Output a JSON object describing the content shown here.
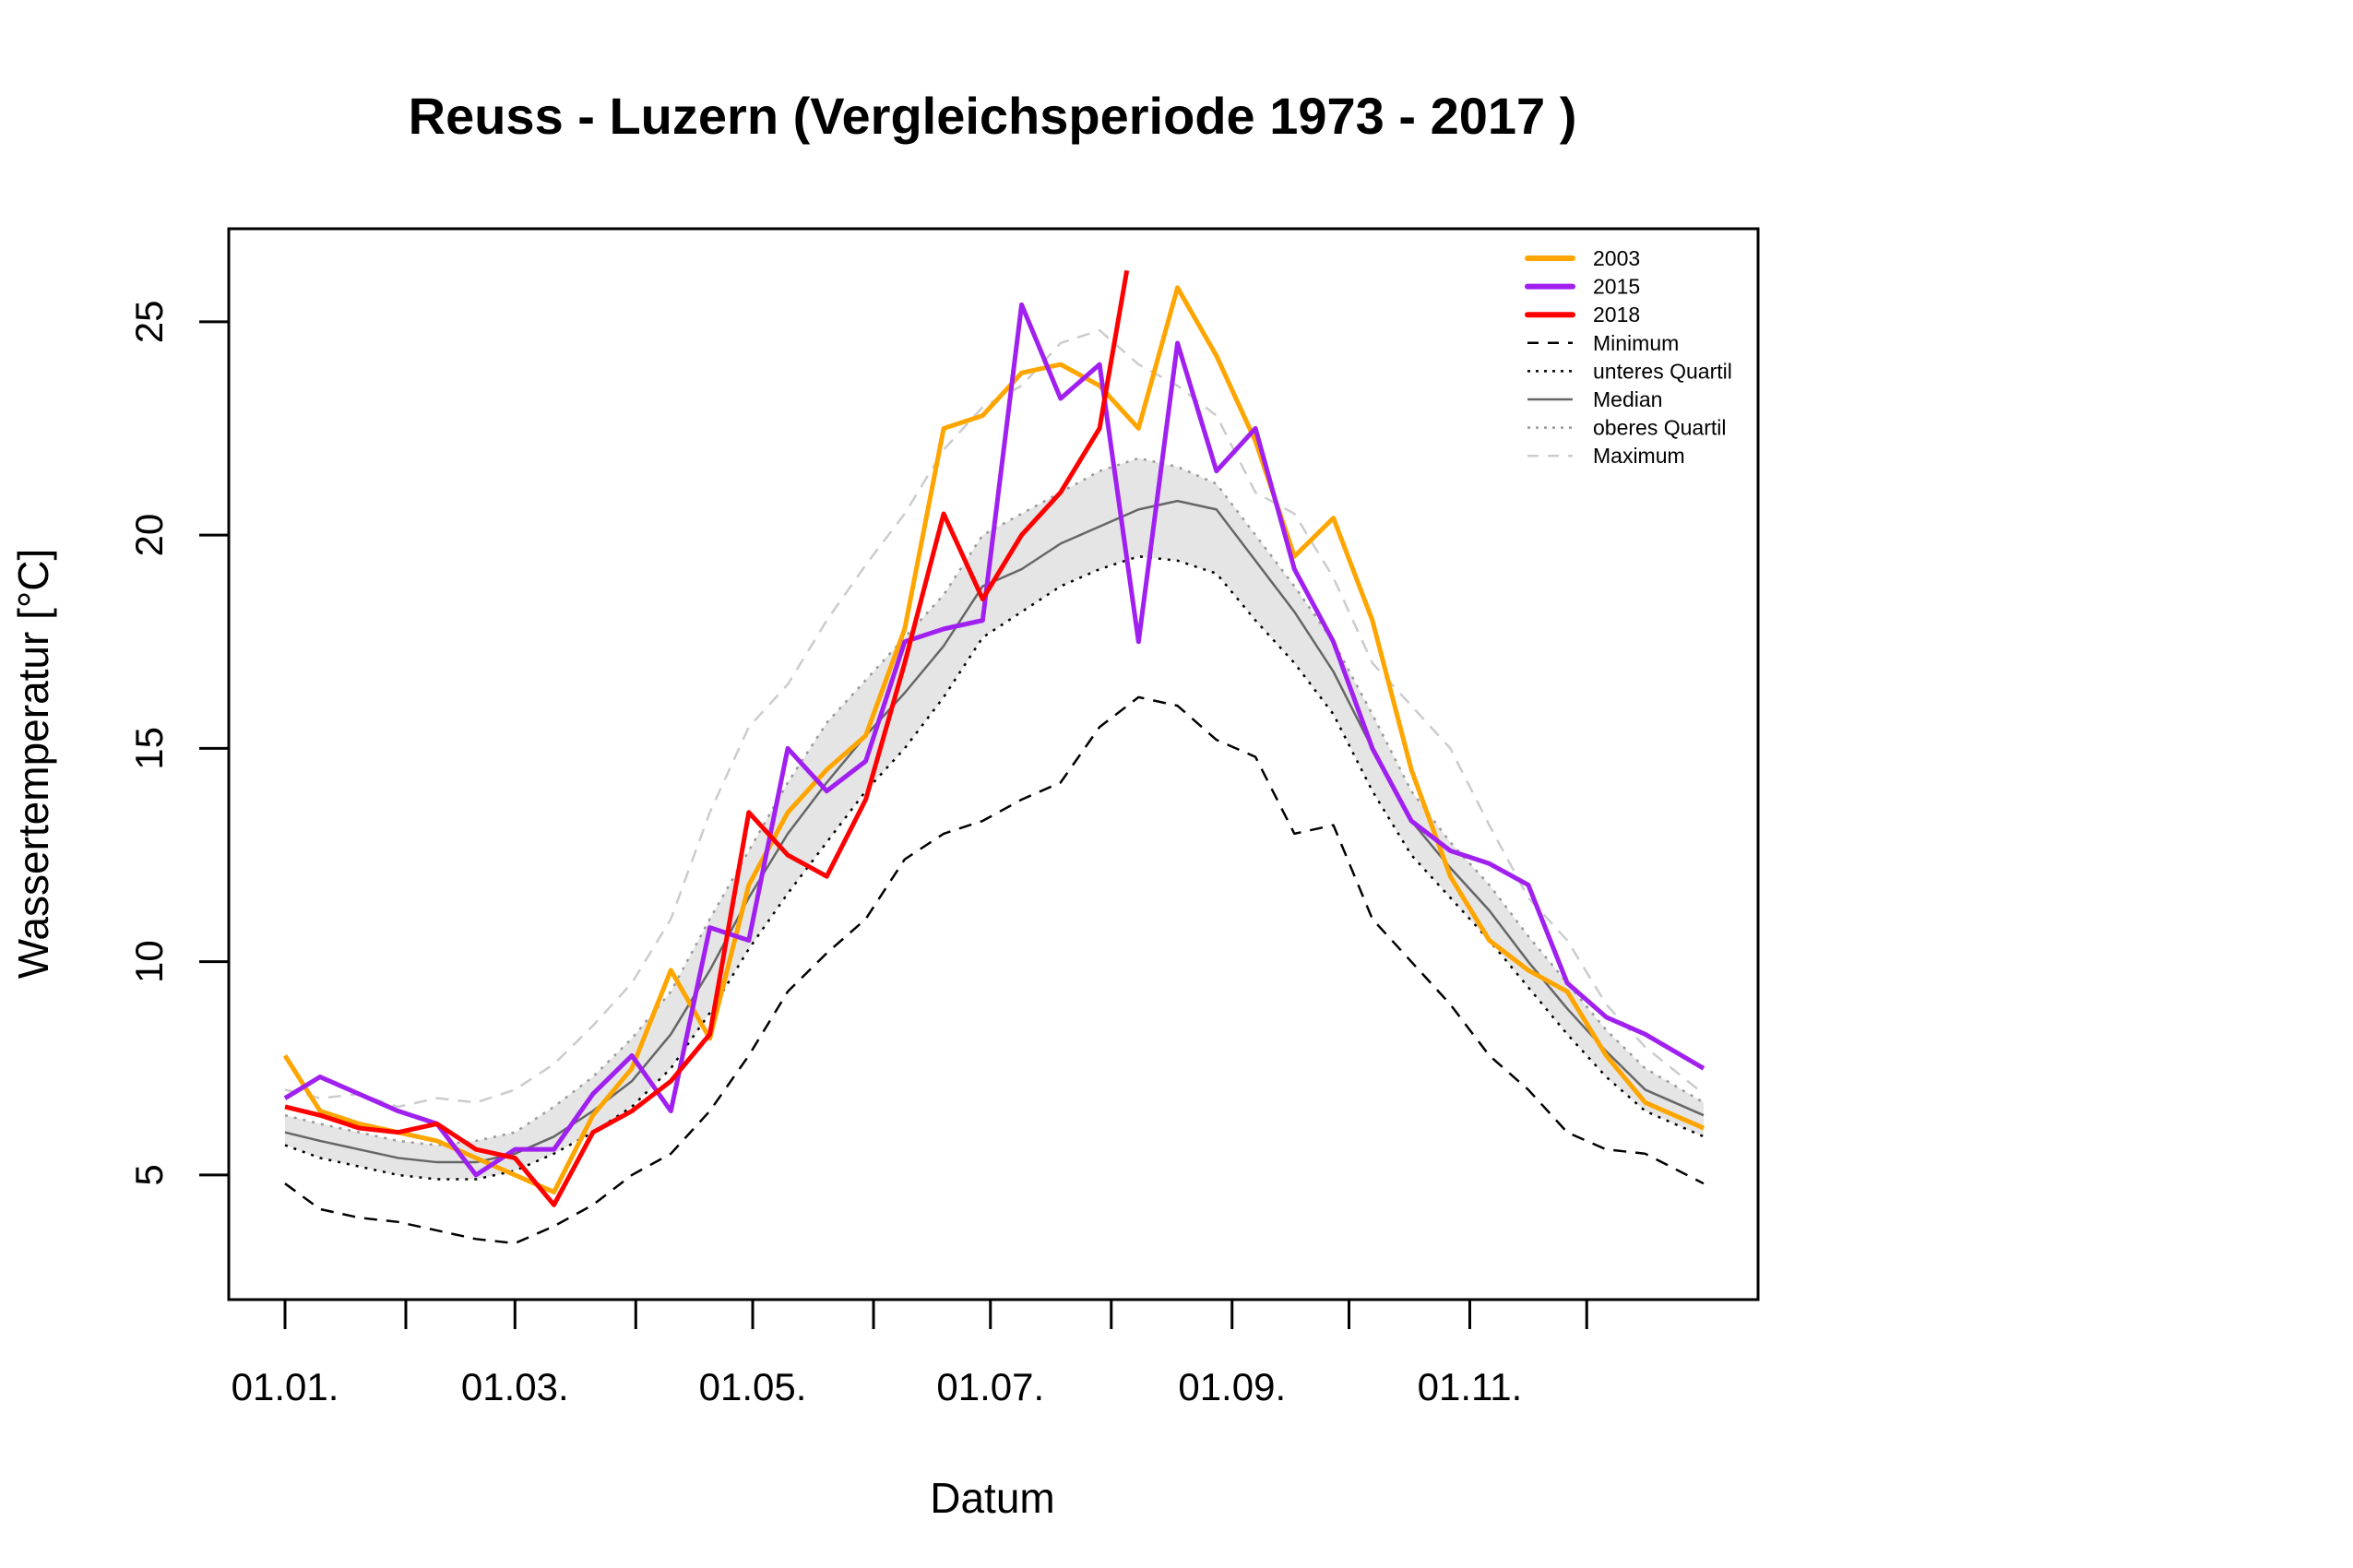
{
  "chart_data": {
    "type": "line",
    "title": "Reuss - Luzern (Vergleichsperiode 1973 - 2017 )",
    "xlabel": "Datum",
    "ylabel": "Wassertemperatur [°C]",
    "xlim": [
      1,
      365
    ],
    "ylim": [
      2.08,
      27.18
    ],
    "x_ticks": [
      1,
      32,
      60,
      91,
      121,
      152,
      182,
      213,
      244,
      274,
      305,
      335
    ],
    "x_tick_labels": [
      "01.01.",
      "",
      "01.03.",
      "",
      "01.05.",
      "",
      "01.07.",
      "",
      "01.09.",
      "",
      "01.11.",
      ""
    ],
    "y_ticks": [
      5,
      10,
      15,
      20,
      25
    ],
    "y_tick_labels": [
      "5",
      "10",
      "15",
      "20",
      "25"
    ],
    "grid": false,
    "legend_position": "top-right",
    "band_color": "#e5e5e5",
    "x": [
      1,
      10,
      20,
      30,
      40,
      50,
      60,
      70,
      80,
      90,
      100,
      110,
      120,
      130,
      140,
      150,
      160,
      170,
      180,
      190,
      200,
      210,
      220,
      230,
      240,
      250,
      260,
      270,
      280,
      290,
      300,
      310,
      320,
      330,
      340,
      350,
      365
    ],
    "series": [
      {
        "name": "2003",
        "color": "#FFA500",
        "style": "thick",
        "values": [
          7.8,
          6.5,
          6.2,
          6.0,
          5.8,
          5.4,
          5.0,
          4.6,
          6.4,
          7.5,
          9.8,
          8.2,
          11.8,
          13.5,
          14.5,
          15.3,
          17.8,
          22.5,
          22.8,
          23.8,
          24.0,
          23.5,
          22.5,
          25.8,
          24.2,
          22.2,
          19.5,
          20.4,
          18.0,
          14.5,
          12.0,
          10.5,
          9.8,
          9.3,
          7.8,
          6.7,
          6.1
        ]
      },
      {
        "name": "2015",
        "color": "#A020F0",
        "style": "thick",
        "values": [
          6.8,
          7.3,
          6.9,
          6.5,
          6.2,
          5.0,
          5.6,
          5.6,
          6.9,
          7.8,
          6.5,
          10.8,
          10.5,
          15.0,
          14.0,
          14.7,
          17.5,
          17.8,
          18.0,
          25.4,
          23.2,
          24.0,
          17.5,
          24.5,
          21.5,
          22.5,
          19.2,
          17.5,
          15.0,
          13.3,
          12.6,
          12.3,
          11.8,
          9.5,
          8.7,
          8.3,
          7.5
        ]
      },
      {
        "name": "2018",
        "color": "#FF0000",
        "style": "thick",
        "x": [
          1,
          10,
          20,
          30,
          40,
          50,
          60,
          70,
          80,
          90,
          100,
          110,
          120,
          130,
          140,
          150,
          160,
          170,
          180,
          190,
          200,
          210,
          217
        ],
        "values": [
          6.6,
          6.4,
          6.1,
          6.0,
          6.2,
          5.6,
          5.4,
          4.3,
          6.0,
          6.5,
          7.2,
          8.3,
          13.5,
          12.5,
          12.0,
          13.8,
          17.0,
          20.5,
          18.5,
          20.0,
          21.0,
          22.5,
          26.2
        ]
      },
      {
        "name": "Minimum",
        "color": "#000000",
        "style": "dashed",
        "values": [
          4.8,
          4.2,
          4.0,
          3.9,
          3.7,
          3.5,
          3.4,
          3.8,
          4.3,
          5.0,
          5.5,
          6.5,
          7.8,
          9.3,
          10.2,
          11.0,
          12.4,
          13.0,
          13.3,
          13.8,
          14.2,
          15.5,
          16.2,
          16.0,
          15.2,
          14.8,
          13.0,
          13.2,
          11.0,
          10.0,
          9.0,
          7.8,
          7.0,
          6.0,
          5.6,
          5.5,
          4.8
        ]
      },
      {
        "name": "unteres Quartil",
        "color": "#000000",
        "style": "dotted",
        "values": [
          5.7,
          5.4,
          5.2,
          5.0,
          4.9,
          4.9,
          5.1,
          5.5,
          6.0,
          6.6,
          7.5,
          8.8,
          10.3,
          11.6,
          12.8,
          14.0,
          15.0,
          16.2,
          17.6,
          18.2,
          18.8,
          19.2,
          19.5,
          19.4,
          19.1,
          18.0,
          17.0,
          15.8,
          14.0,
          12.5,
          11.5,
          10.5,
          9.4,
          8.3,
          7.3,
          6.5,
          5.9
        ]
      },
      {
        "name": "Median",
        "color": "#666666",
        "style": "solid",
        "values": [
          6.0,
          5.8,
          5.6,
          5.4,
          5.3,
          5.3,
          5.5,
          5.9,
          6.5,
          7.2,
          8.3,
          9.8,
          11.5,
          13.0,
          14.2,
          15.3,
          16.3,
          17.4,
          18.8,
          19.2,
          19.8,
          20.2,
          20.6,
          20.8,
          20.6,
          19.4,
          18.2,
          16.8,
          15.0,
          13.3,
          12.2,
          11.2,
          10.0,
          8.9,
          7.9,
          7.0,
          6.4
        ]
      },
      {
        "name": "oberes Quartil",
        "color": "#999999",
        "style": "dotted",
        "values": [
          6.4,
          6.2,
          6.0,
          5.8,
          5.7,
          5.8,
          6.0,
          6.6,
          7.3,
          8.2,
          9.3,
          11.0,
          12.6,
          14.2,
          15.6,
          16.6,
          17.6,
          18.6,
          20.0,
          20.5,
          21.0,
          21.5,
          21.8,
          21.6,
          21.2,
          20.0,
          18.8,
          17.5,
          15.8,
          14.0,
          12.8,
          11.8,
          10.6,
          9.5,
          8.4,
          7.5,
          6.7
        ]
      },
      {
        "name": "Maximum",
        "color": "#CCCCCC",
        "style": "dashed",
        "values": [
          7.0,
          6.8,
          6.9,
          6.6,
          6.8,
          6.7,
          7.0,
          7.6,
          8.5,
          9.5,
          11.0,
          13.5,
          15.5,
          16.5,
          18.0,
          19.3,
          20.5,
          22.0,
          23.0,
          23.5,
          24.5,
          24.8,
          24.0,
          23.5,
          22.8,
          21.0,
          20.5,
          19.0,
          17.0,
          16.0,
          15.0,
          13.2,
          11.5,
          10.5,
          9.0,
          8.0,
          6.9
        ]
      }
    ]
  }
}
